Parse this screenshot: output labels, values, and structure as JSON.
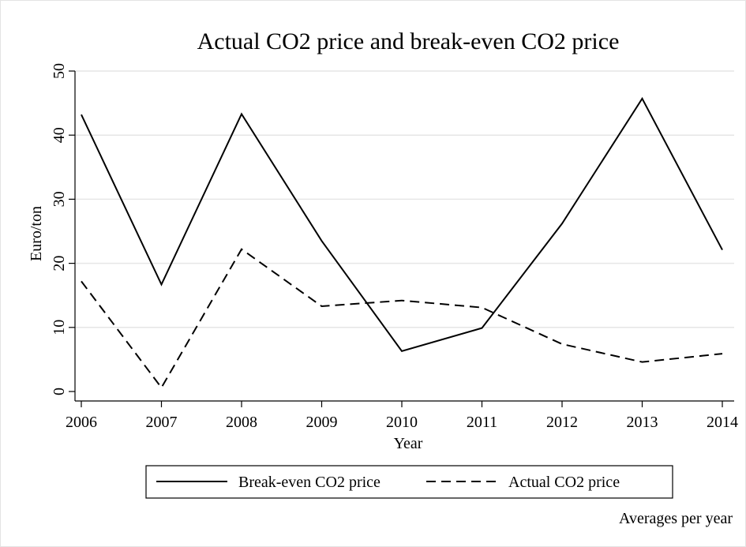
{
  "chart_data": {
    "type": "line",
    "title": "Actual CO2 price and break-even CO2 price",
    "x_label": "Year",
    "y_label": "Euro/ton",
    "note": "Averages per year",
    "x": [
      2006,
      2007,
      2008,
      2009,
      2010,
      2011,
      2012,
      2013,
      2014
    ],
    "xlim": [
      2006,
      2014
    ],
    "xticks": [
      2006,
      2007,
      2008,
      2009,
      2010,
      2011,
      2012,
      2013,
      2014
    ],
    "ylim": [
      0,
      50
    ],
    "yticks": [
      0,
      10,
      20,
      30,
      40,
      50
    ],
    "grid": true,
    "legend": "bottom",
    "series": [
      {
        "name": "Break-even CO2 price",
        "color": "#000000",
        "dash": "solid",
        "values": [
          43.2,
          16.7,
          43.3,
          23.5,
          6.3,
          9.9,
          26.2,
          45.7,
          22.1
        ]
      },
      {
        "name": "Actual CO2 price",
        "color": "#000000",
        "dash": "dashed",
        "values": [
          17.2,
          0.6,
          22.2,
          13.3,
          14.2,
          13.1,
          7.4,
          4.6,
          5.9
        ]
      }
    ]
  }
}
